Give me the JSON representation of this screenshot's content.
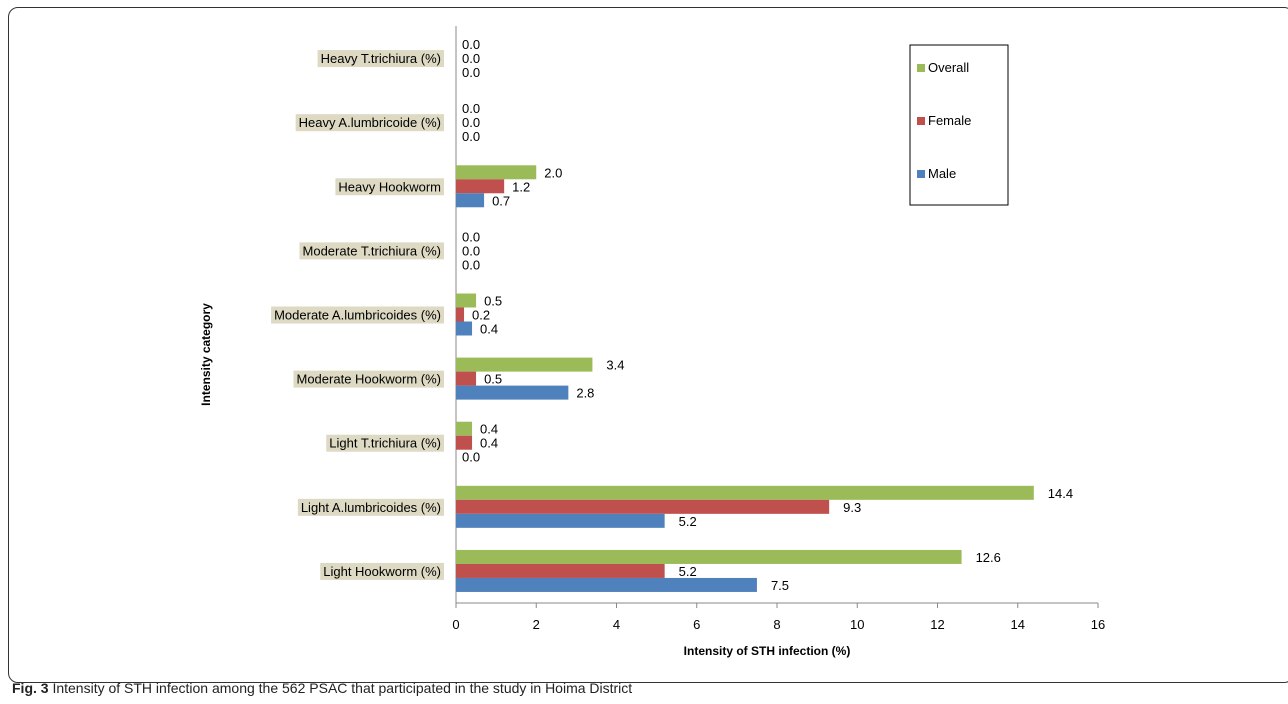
{
  "caption": {
    "label": "Fig. 3",
    "text": "Intensity of STH infection among the 562 PSAC that participated in the study in Hoima District"
  },
  "chart_data": {
    "type": "bar",
    "orientation": "horizontal",
    "title": "",
    "xlabel": "Intensity of STH infection (%)",
    "ylabel": "Intensity category",
    "xlim": [
      0,
      16
    ],
    "xticks": [
      0,
      2,
      4,
      6,
      8,
      10,
      12,
      14,
      16
    ],
    "grid": false,
    "legend_position": "top-right",
    "categories": [
      "Light Hookworm (%)",
      "Light A.lumbricoides (%)",
      "Light T.trichiura (%)",
      "Moderate Hookworm (%)",
      "Moderate A.lumbricoides (%)",
      "Moderate T.trichiura (%)",
      "Heavy Hookworm",
      "Heavy A.lumbricoide (%)",
      "Heavy T.trichiura (%)"
    ],
    "series": [
      {
        "name": "Male",
        "color": "#4f81bd",
        "values": [
          7.5,
          5.2,
          0.0,
          2.8,
          0.4,
          0.0,
          0.7,
          0.0,
          0.0
        ]
      },
      {
        "name": "Female",
        "color": "#c0504d",
        "values": [
          5.2,
          9.3,
          0.4,
          0.5,
          0.2,
          0.0,
          1.2,
          0.0,
          0.0
        ]
      },
      {
        "name": "Overall",
        "color": "#9bbb59",
        "values": [
          12.6,
          14.4,
          0.4,
          3.4,
          0.5,
          0.0,
          2.0,
          0.0,
          0.0
        ]
      }
    ],
    "data_labels": [
      [
        "7.5",
        "5.2",
        "12.6"
      ],
      [
        "5.2",
        "9.3",
        "14.4"
      ],
      [
        "0.0",
        "0.4",
        "0.4"
      ],
      [
        "2.8",
        "0.5",
        "3.4"
      ],
      [
        "0.4",
        "0.2",
        "0.5"
      ],
      [
        "0.0",
        "0.0",
        "0.0"
      ],
      [
        "0.7",
        "1.2",
        "2.0"
      ],
      [
        "0.0",
        "0.0",
        "0.0"
      ],
      [
        "0.0",
        "0.0",
        "0.0"
      ]
    ],
    "legend_order": [
      "Overall",
      "Female",
      "Male"
    ]
  }
}
